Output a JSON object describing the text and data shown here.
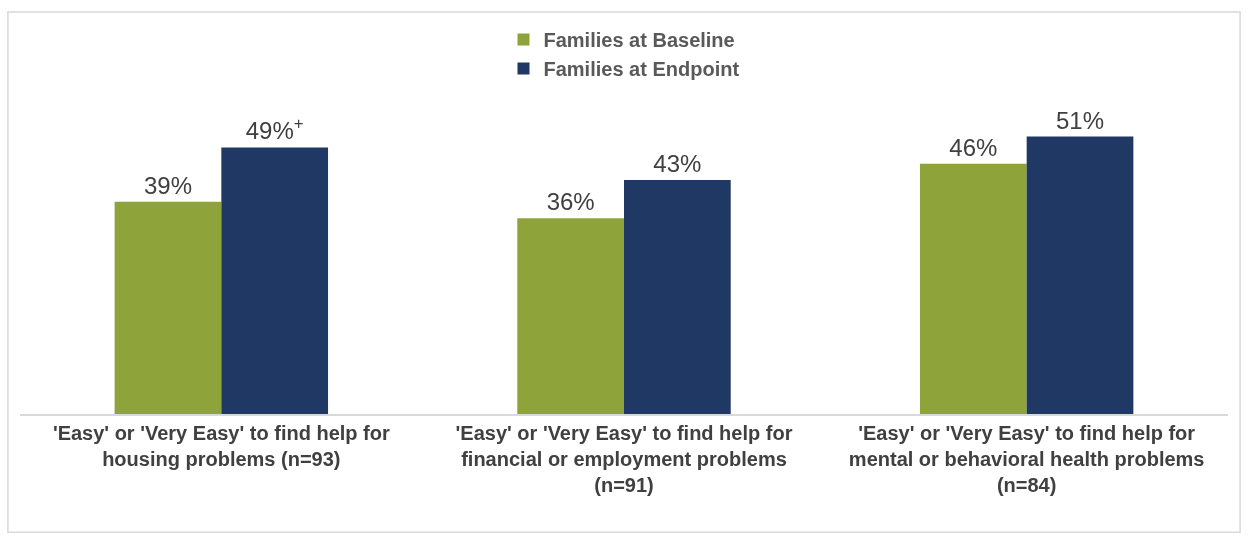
{
  "chart_data": {
    "type": "bar",
    "categories": [
      "'Easy' or 'Very Easy' to find help for housing problems (n=93)",
      "'Easy' or 'Very Easy' to find help for financial or employment problems (n=91)",
      "'Easy' or 'Very Easy' to find help for mental or behavioral health problems (n=84)"
    ],
    "series": [
      {
        "name": "Families at Baseline",
        "color": "#8ea33a",
        "values": [
          39,
          36,
          46
        ],
        "value_labels": [
          "39%",
          "36%",
          "46%"
        ]
      },
      {
        "name": "Families at Endpoint",
        "color": "#203864",
        "values": [
          49,
          43,
          51
        ],
        "value_labels": [
          "49%$^{+}$",
          "43%",
          "51%"
        ]
      }
    ],
    "legend": "top",
    "tick_labels": "x"
  }
}
